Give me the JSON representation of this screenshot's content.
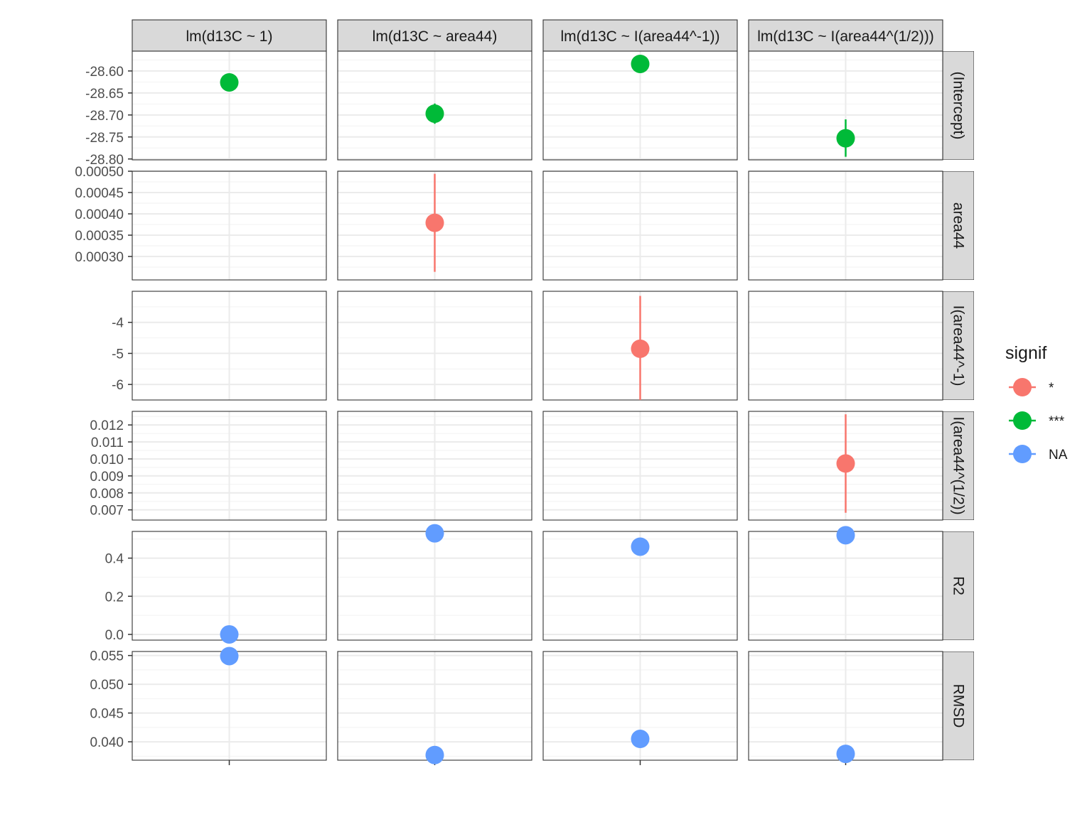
{
  "chart_data": {
    "type": "scatter",
    "title": "",
    "xlabel": "",
    "ylabel": "",
    "grid": true,
    "legend_position": "right",
    "legend": {
      "title": "signif",
      "entries": [
        {
          "label": "*",
          "color": "#F8766D"
        },
        {
          "label": "***",
          "color": "#00BA38"
        },
        {
          "label": "NA",
          "color": "#619CFF"
        }
      ]
    },
    "columns": [
      "lm(d13C ~ 1)",
      "lm(d13C ~ area44)",
      "lm(d13C ~ I(area44^-1))",
      "lm(d13C ~ I(area44^(1/2)))"
    ],
    "rows": [
      {
        "label": "(Intercept)",
        "ylim": [
          -28.802,
          -28.555
        ],
        "ticks": [
          -28.6,
          -28.65,
          -28.7,
          -28.75,
          -28.8
        ],
        "tick_labels": [
          "-28.60",
          "-28.65",
          "-28.70",
          "-28.75",
          "-28.80"
        ]
      },
      {
        "label": "area44",
        "ylim": [
          0.000245,
          0.0005
        ],
        "ticks": [
          0.0005,
          0.00045,
          0.0004,
          0.00035,
          0.0003
        ],
        "tick_labels": [
          "0.00050",
          "0.00045",
          "0.00040",
          "0.00035",
          "0.00030"
        ]
      },
      {
        "label": "I(area44^-1)",
        "ylim": [
          -6.5,
          -3.0
        ],
        "ticks": [
          -4,
          -5,
          -6
        ],
        "tick_labels": [
          "-4",
          "-5",
          "-6"
        ]
      },
      {
        "label": "I(area44^(1/2))",
        "ylim": [
          0.0064,
          0.0128
        ],
        "ticks": [
          0.012,
          0.011,
          0.01,
          0.009,
          0.008,
          0.007
        ],
        "tick_labels": [
          "0.012",
          "0.011",
          "0.010",
          "0.009",
          "0.008",
          "0.007"
        ]
      },
      {
        "label": "R2",
        "ylim": [
          -0.03,
          0.54
        ],
        "ticks": [
          0.4,
          0.2,
          0.0
        ],
        "tick_labels": [
          "0.4",
          "0.2",
          "0.0"
        ]
      },
      {
        "label": "RMSD",
        "ylim": [
          0.0368,
          0.0557
        ],
        "ticks": [
          0.055,
          0.05,
          0.045,
          0.04
        ],
        "tick_labels": [
          "0.055",
          "0.050",
          "0.045",
          "0.040"
        ]
      }
    ],
    "points": [
      {
        "row": 0,
        "col": 0,
        "y": -28.626,
        "signif": "***"
      },
      {
        "row": 0,
        "col": 1,
        "y": -28.697,
        "lower": -28.72,
        "upper": -28.674,
        "signif": "***"
      },
      {
        "row": 0,
        "col": 2,
        "y": -28.584,
        "signif": "***"
      },
      {
        "row": 0,
        "col": 3,
        "y": -28.753,
        "lower": -28.795,
        "upper": -28.71,
        "signif": "***"
      },
      {
        "row": 1,
        "col": 1,
        "y": 0.000379,
        "lower": 0.000264,
        "upper": 0.000494,
        "signif": "*"
      },
      {
        "row": 2,
        "col": 2,
        "y": -4.85,
        "lower": -6.5,
        "upper": -3.15,
        "signif": "*"
      },
      {
        "row": 3,
        "col": 3,
        "y": 0.00973,
        "lower": 0.00683,
        "upper": 0.01263,
        "signif": "*"
      },
      {
        "row": 4,
        "col": 0,
        "y": 0.0,
        "signif": "NA"
      },
      {
        "row": 4,
        "col": 1,
        "y": 0.53,
        "signif": "NA"
      },
      {
        "row": 4,
        "col": 2,
        "y": 0.46,
        "signif": "NA"
      },
      {
        "row": 4,
        "col": 3,
        "y": 0.52,
        "signif": "NA"
      },
      {
        "row": 5,
        "col": 0,
        "y": 0.0549,
        "signif": "NA"
      },
      {
        "row": 5,
        "col": 1,
        "y": 0.0377,
        "signif": "NA"
      },
      {
        "row": 5,
        "col": 2,
        "y": 0.0405,
        "signif": "NA"
      },
      {
        "row": 5,
        "col": 3,
        "y": 0.0379,
        "signif": "NA"
      }
    ]
  }
}
